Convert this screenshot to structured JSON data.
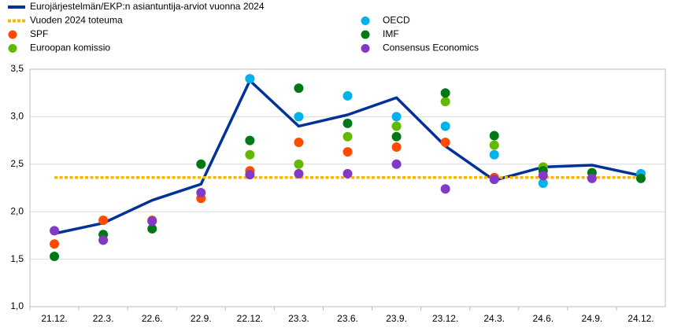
{
  "chart_data": {
    "type": "line",
    "categories": [
      "21.12.",
      "22.3.",
      "22.6.",
      "22.9.",
      "22.12.",
      "23.3.",
      "23.6.",
      "23.9.",
      "23.12.",
      "24.3.",
      "24.6.",
      "24.9.",
      "24.12."
    ],
    "ylim": [
      1,
      3.5
    ],
    "yticks": [
      {
        "value": 1,
        "label": "1,0"
      },
      {
        "value": 1.5,
        "label": "1,5"
      },
      {
        "value": 2,
        "label": "2,0"
      },
      {
        "value": 2.5,
        "label": "2,5"
      },
      {
        "value": 3,
        "label": "3,0"
      },
      {
        "value": 3.5,
        "label": "3,5"
      }
    ],
    "grid": true,
    "series": [
      {
        "name": "Eurojärjestelmän/EKP:n asiantuntija-arviot vuonna 2024",
        "color": "#003299",
        "style": "line",
        "values": [
          1.77,
          1.88,
          2.12,
          2.29,
          3.38,
          2.9,
          3.02,
          3.2,
          2.69,
          2.33,
          2.47,
          2.49,
          2.38
        ]
      },
      {
        "name": "Vuoden 2024 toteuma",
        "color": "#ffb400",
        "style": "dashed",
        "values": [
          2.36,
          2.36,
          2.36,
          2.36,
          2.36,
          2.36,
          2.36,
          2.36,
          2.36,
          2.36,
          2.36,
          2.36,
          2.36
        ]
      },
      {
        "name": "SPF",
        "color": "#ff4b00",
        "style": "marker",
        "values": [
          1.66,
          1.91,
          1.91,
          2.14,
          2.43,
          2.73,
          2.63,
          2.68,
          2.73,
          2.36,
          null,
          null,
          null
        ]
      },
      {
        "name": "Euroopan komissio",
        "color": "#65b800",
        "style": "marker",
        "values": [
          null,
          null,
          null,
          null,
          2.6,
          2.5,
          2.79,
          2.9,
          3.16,
          2.7,
          2.47,
          null,
          null
        ]
      },
      {
        "name": "OECD",
        "color": "#00b1ea",
        "style": "marker",
        "values": [
          null,
          null,
          null,
          null,
          3.4,
          3.0,
          3.22,
          3.0,
          2.9,
          2.6,
          2.3,
          null,
          2.4
        ]
      },
      {
        "name": "IMF",
        "color": "#007816",
        "style": "marker",
        "values": [
          1.53,
          1.76,
          1.82,
          2.5,
          2.75,
          3.3,
          2.93,
          2.79,
          3.25,
          2.8,
          2.43,
          2.41,
          2.35
        ]
      },
      {
        "name": "Consensus Economics",
        "color": "#8139c6",
        "style": "marker",
        "values": [
          1.8,
          1.7,
          1.9,
          2.2,
          2.39,
          2.4,
          2.4,
          2.5,
          2.24,
          2.34,
          2.38,
          2.35,
          null
        ]
      }
    ]
  }
}
